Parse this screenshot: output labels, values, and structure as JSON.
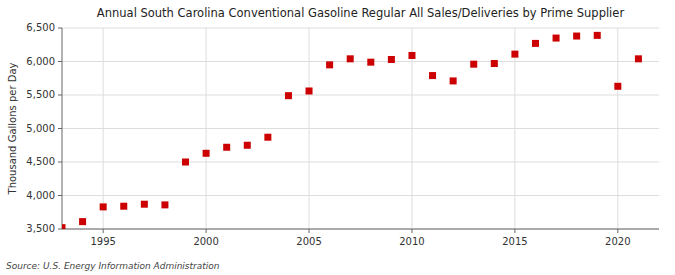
{
  "chart_data": {
    "type": "scatter",
    "title": "Annual South Carolina Conventional Gasoline Regular All Sales/Deliveries by Prime Supplier",
    "y_label": "Thousand Gallons per Day",
    "annotations": [
      "Source: U.S. Energy Information Administration"
    ],
    "color": "#cc0000",
    "marker": "square",
    "x": [
      1993,
      1994,
      1995,
      1996,
      1997,
      1998,
      1999,
      2000,
      2001,
      2002,
      2003,
      2004,
      2005,
      2006,
      2007,
      2008,
      2009,
      2010,
      2011,
      2012,
      2013,
      2014,
      2015,
      2016,
      2017,
      2018,
      2019,
      2020,
      2021
    ],
    "values": [
      3520,
      3610,
      3830,
      3840,
      3870,
      3860,
      4500,
      4630,
      4720,
      4750,
      4870,
      5490,
      5560,
      5950,
      6040,
      5990,
      6030,
      6090,
      5790,
      5710,
      5960,
      5970,
      6110,
      6270,
      6350,
      6380,
      6390,
      5630,
      6040
    ],
    "xlim": [
      1993,
      2022
    ],
    "ylim": [
      3500,
      6500
    ],
    "xticks": [
      1995,
      2000,
      2005,
      2010,
      2015,
      2020
    ],
    "yticks": [
      {
        "value": 3500,
        "label": "3,500"
      },
      {
        "value": 4000,
        "label": "4,000"
      },
      {
        "value": 4500,
        "label": "4,500"
      },
      {
        "value": 5000,
        "label": "5,000"
      },
      {
        "value": 5500,
        "label": "5,500"
      },
      {
        "value": 6000,
        "label": "6,000"
      },
      {
        "value": 6500,
        "label": "6,500"
      }
    ],
    "grid": true
  }
}
